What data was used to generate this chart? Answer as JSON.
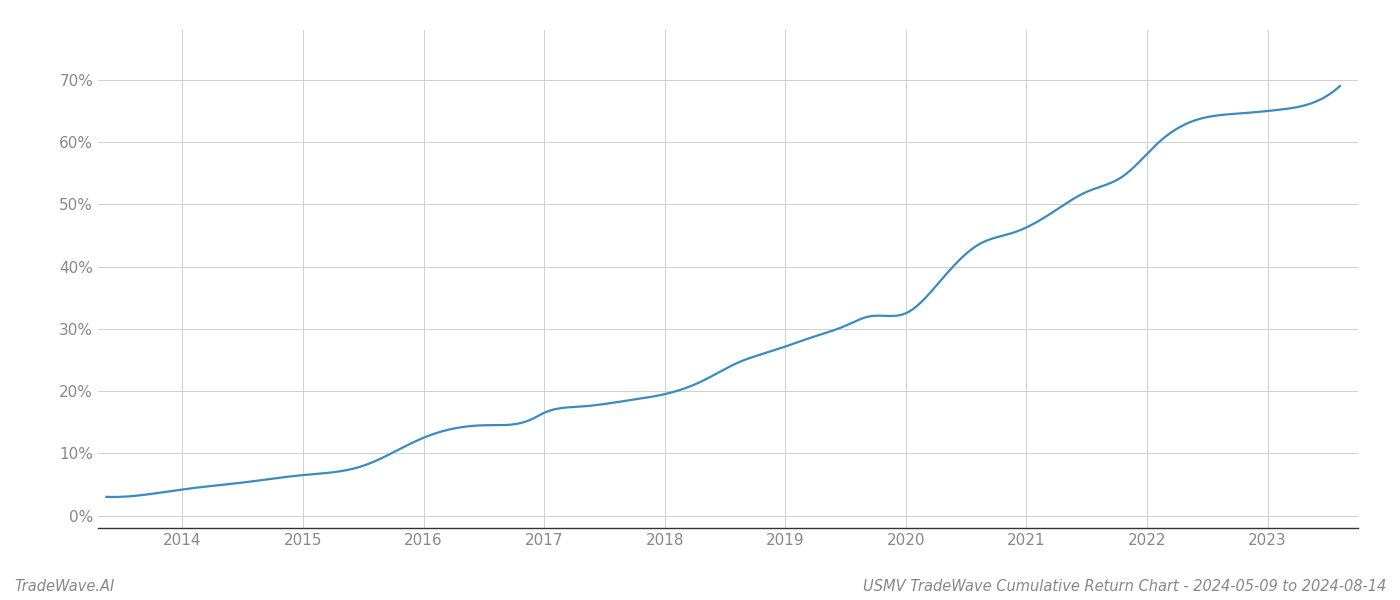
{
  "title": "USMV TradeWave Cumulative Return Chart - 2024-05-09 to 2024-08-14",
  "watermark": "TradeWave.AI",
  "line_color": "#3a8bbf",
  "background_color": "#ffffff",
  "grid_color": "#d0d0d0",
  "x_years": [
    2014,
    2015,
    2016,
    2017,
    2018,
    2019,
    2020,
    2021,
    2022,
    2023
  ],
  "x_key": [
    2013.37,
    2013.75,
    2014.0,
    2014.5,
    2015.0,
    2015.5,
    2016.0,
    2016.5,
    2016.9,
    2017.0,
    2017.3,
    2017.7,
    2018.0,
    2018.3,
    2018.6,
    2018.9,
    2019.2,
    2019.5,
    2019.7,
    2020.0,
    2020.3,
    2020.6,
    2020.9,
    2021.2,
    2021.5,
    2021.8,
    2022.1,
    2022.4,
    2022.7,
    2022.9,
    2023.1,
    2023.4,
    2023.6
  ],
  "y_key": [
    0.03,
    0.035,
    0.042,
    0.053,
    0.065,
    0.08,
    0.125,
    0.145,
    0.155,
    0.165,
    0.175,
    0.185,
    0.195,
    0.215,
    0.245,
    0.265,
    0.285,
    0.305,
    0.32,
    0.325,
    0.38,
    0.435,
    0.455,
    0.485,
    0.52,
    0.545,
    0.6,
    0.635,
    0.645,
    0.648,
    0.652,
    0.665,
    0.69
  ],
  "ylim": [
    -0.02,
    0.78
  ],
  "xlim": [
    2013.3,
    2023.75
  ],
  "yticks": [
    0.0,
    0.1,
    0.2,
    0.3,
    0.4,
    0.5,
    0.6,
    0.7
  ],
  "ytick_labels": [
    "0%",
    "10%",
    "20%",
    "30%",
    "40%",
    "50%",
    "60%",
    "70%"
  ],
  "line_width": 1.6,
  "title_fontsize": 10.5,
  "watermark_fontsize": 10.5,
  "tick_fontsize": 11,
  "tick_color": "#888888",
  "axis_color": "#333333"
}
